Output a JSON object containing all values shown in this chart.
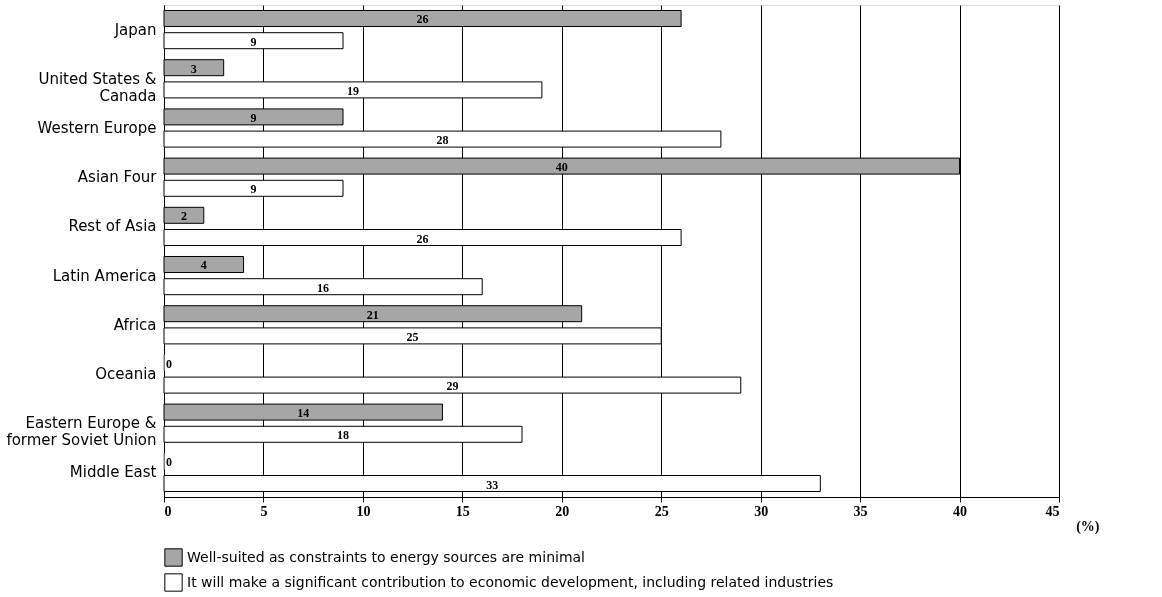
{
  "chart_data": {
    "type": "bar",
    "orientation": "horizontal",
    "xlabel": "(%)",
    "categories": [
      "Japan",
      "United States &\nCanada",
      "Western Europe",
      "Asian Four",
      "Rest of Asia",
      "Latin America",
      "Africa",
      "Oceania",
      "Eastern Europe &\nformer Soviet Union",
      "Middle East"
    ],
    "series": [
      {
        "name": "Well-suited as constraints to energy sources are minimal",
        "color": "#a6a6a6",
        "values": [
          26,
          3,
          9,
          40,
          2,
          4,
          21,
          0,
          14,
          0
        ]
      },
      {
        "name": "It will make a significant contribution to economic development, including related industries",
        "color": "#ffffff",
        "values": [
          9,
          19,
          28,
          9,
          26,
          16,
          25,
          29,
          18,
          33
        ]
      }
    ],
    "xlim": [
      0,
      45
    ],
    "xticks": [
      0,
      5,
      10,
      15,
      20,
      25,
      30,
      35,
      40,
      45
    ],
    "grid": "x",
    "data_labels": true,
    "legend": "bottom"
  }
}
